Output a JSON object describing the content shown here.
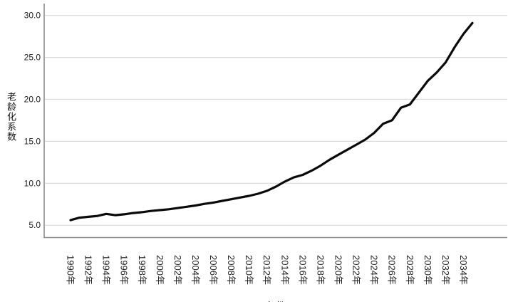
{
  "chart_data": {
    "type": "line",
    "title": "",
    "ylabel": "老龄化系数",
    "xlabel": "年份",
    "legend": "none",
    "grid": "horizontal",
    "ylim": [
      3.6,
      31.0
    ],
    "y_tick_values": [
      5,
      10,
      15,
      20,
      25,
      30
    ],
    "y_tick_labels": [
      "5.0",
      "10.0",
      "15.0",
      "20.0",
      "25.0",
      "30.0"
    ],
    "x_tick_labels": [
      "1990年",
      "1992年",
      "1994年",
      "1996年",
      "1998年",
      "2000年",
      "2002年",
      "2004年",
      "2006年",
      "2008年",
      "2010年",
      "2012年",
      "2014年",
      "2016年",
      "2018年",
      "2020年",
      "2022年",
      "2024年",
      "2026年",
      "2028年",
      "2030年",
      "2032年",
      "2034年"
    ],
    "years": [
      1990,
      1991,
      1992,
      1993,
      1994,
      1995,
      1996,
      1997,
      1998,
      1999,
      2000,
      2001,
      2002,
      2003,
      2004,
      2005,
      2006,
      2007,
      2008,
      2009,
      2010,
      2011,
      2012,
      2013,
      2014,
      2015,
      2016,
      2017,
      2018,
      2019,
      2020,
      2021,
      2022,
      2023,
      2024,
      2025,
      2026,
      2027,
      2028,
      2029,
      2030,
      2031,
      2032,
      2033,
      2034,
      2035
    ],
    "values": [
      5.6,
      5.9,
      6.0,
      6.1,
      6.35,
      6.2,
      6.3,
      6.45,
      6.55,
      6.7,
      6.8,
      6.9,
      7.05,
      7.2,
      7.35,
      7.55,
      7.7,
      7.9,
      8.1,
      8.3,
      8.5,
      8.75,
      9.1,
      9.6,
      10.2,
      10.7,
      11.0,
      11.5,
      12.1,
      12.8,
      13.4,
      14.0,
      14.6,
      15.2,
      16.0,
      17.1,
      17.5,
      19.0,
      19.4,
      20.8,
      22.2,
      23.2,
      24.4,
      26.2,
      27.8,
      29.1
    ],
    "line_color": "#0a0a0a",
    "grid_color": "#d9d9d9",
    "axis_color": "#8c8c8c",
    "tick_text_color": "#1c1c1c"
  }
}
